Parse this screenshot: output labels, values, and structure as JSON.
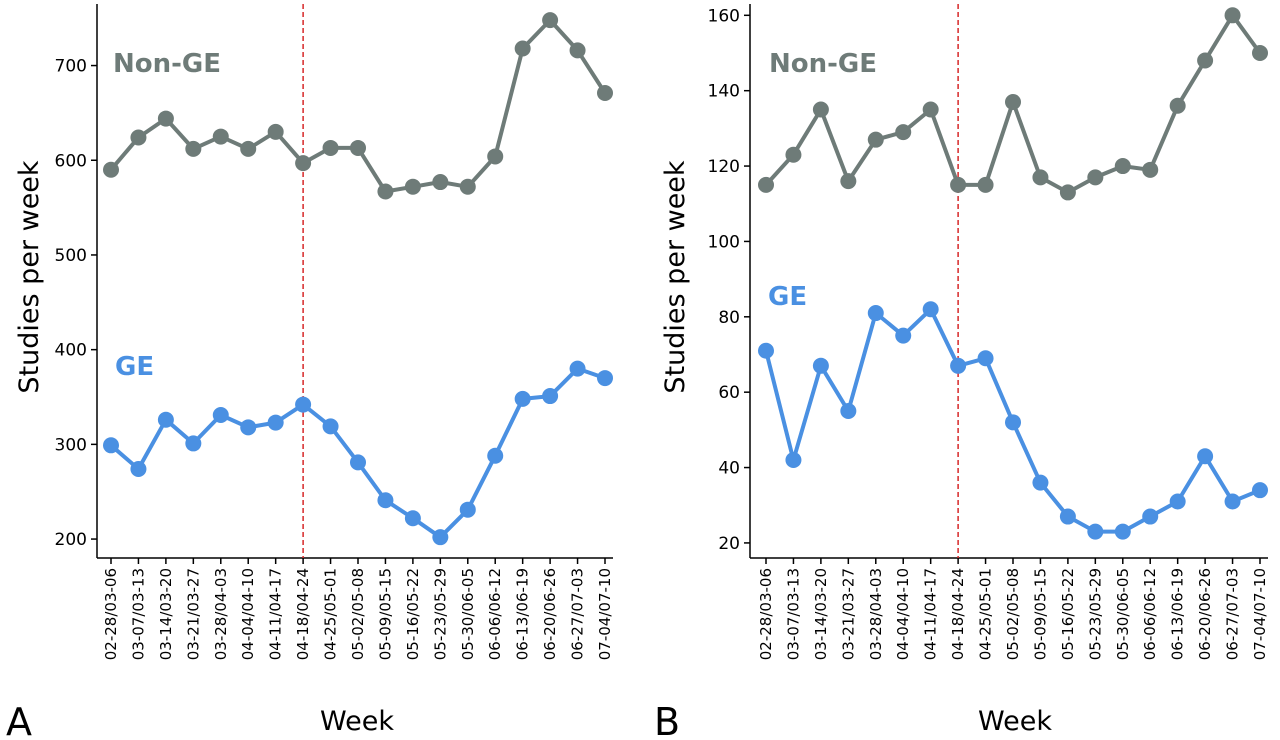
{
  "colors": {
    "non_ge": "#6e7b78",
    "ge": "#4a90e2",
    "marker_line": "#d62728",
    "axis": "#000000"
  },
  "chart_data": [
    {
      "type": "line",
      "panel": "A",
      "xlabel": "Week",
      "ylabel": "Studies per week",
      "ylim": [
        180,
        765
      ],
      "yticks": [
        200,
        300,
        400,
        500,
        600,
        700
      ],
      "grid": false,
      "categories": [
        "02-28/03-06",
        "03-07/03-13",
        "03-14/03-20",
        "03-21/03-27",
        "03-28/04-03",
        "04-04/04-10",
        "04-11/04-17",
        "04-18/04-24",
        "04-25/05-01",
        "05-02/05-08",
        "05-09/05-15",
        "05-16/05-22",
        "05-23/05-29",
        "05-30/06-05",
        "06-06/06-12",
        "06-13/06-19",
        "06-20/06-26",
        "06-27/07-03",
        "07-04/07-10"
      ],
      "vline_category": "04-18/04-24",
      "series": [
        {
          "name": "Non-GE",
          "values": [
            590,
            624,
            644,
            612,
            625,
            612,
            630,
            597,
            613,
            613,
            567,
            572,
            577,
            572,
            604,
            718,
            748,
            716,
            671
          ]
        },
        {
          "name": "GE",
          "values": [
            299,
            274,
            326,
            301,
            331,
            318,
            323,
            342,
            319,
            281,
            241,
            222,
            202,
            231,
            288,
            348,
            351,
            380,
            370
          ]
        }
      ]
    },
    {
      "type": "line",
      "panel": "B",
      "xlabel": "Week",
      "ylabel": "Studies per week",
      "ylim": [
        16,
        163
      ],
      "yticks": [
        20,
        40,
        60,
        80,
        100,
        120,
        140,
        160
      ],
      "grid": false,
      "categories": [
        "02-28/03-06",
        "03-07/03-13",
        "03-14/03-20",
        "03-21/03-27",
        "03-28/04-03",
        "04-04/04-10",
        "04-11/04-17",
        "04-18/04-24",
        "04-25/05-01",
        "05-02/05-08",
        "05-09/05-15",
        "05-16/05-22",
        "05-23/05-29",
        "05-30/06-05",
        "06-06/06-12",
        "06-13/06-19",
        "06-20/06-26",
        "06-27/07-03",
        "07-04/07-10"
      ],
      "vline_category": "04-18/04-24",
      "series": [
        {
          "name": "Non-GE",
          "values": [
            115,
            123,
            135,
            116,
            127,
            129,
            135,
            115,
            115,
            137,
            117,
            113,
            117,
            120,
            119,
            136,
            148,
            160,
            150
          ]
        },
        {
          "name": "GE",
          "values": [
            71,
            42,
            67,
            55,
            81,
            75,
            82,
            67,
            69,
            52,
            36,
            27,
            23,
            23,
            27,
            31,
            43,
            31,
            34
          ]
        }
      ]
    }
  ]
}
